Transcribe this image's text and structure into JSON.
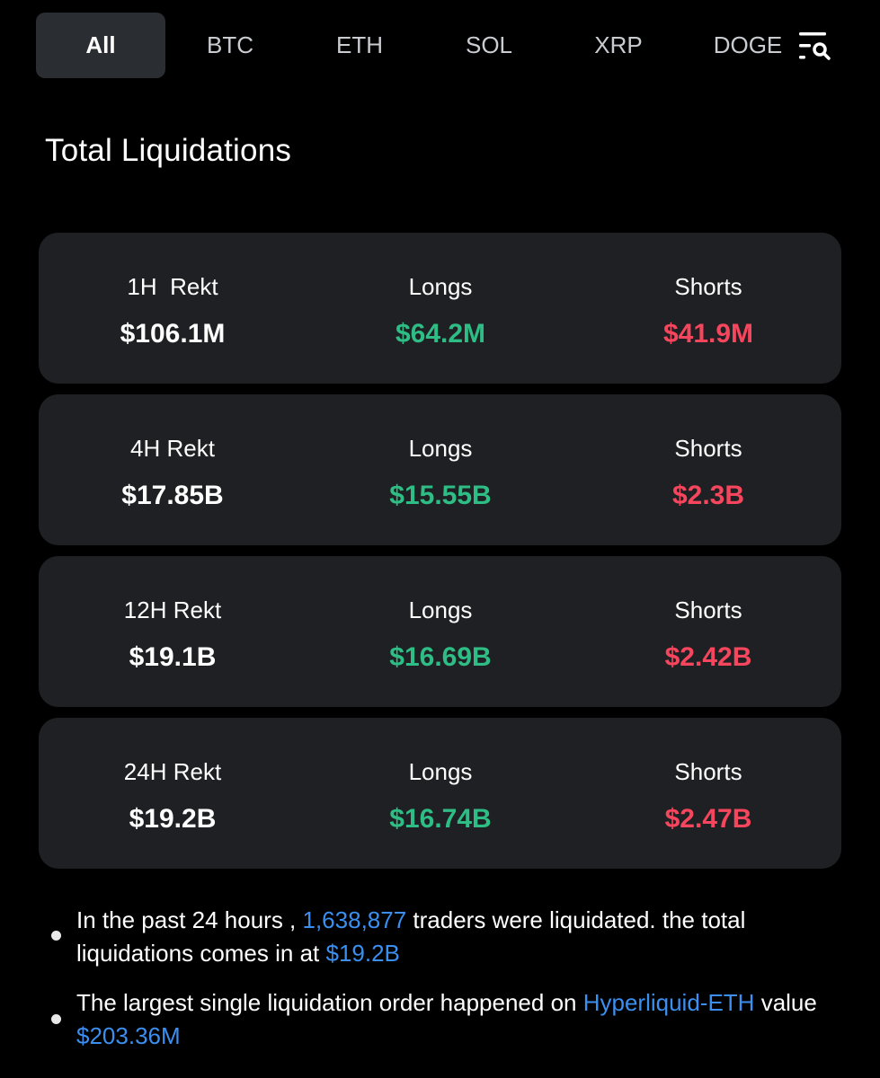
{
  "tabs": [
    {
      "label": "All",
      "active": true
    },
    {
      "label": "BTC",
      "active": false
    },
    {
      "label": "ETH",
      "active": false
    },
    {
      "label": "SOL",
      "active": false
    },
    {
      "label": "XRP",
      "active": false
    },
    {
      "label": "DOGE",
      "active": false
    }
  ],
  "filter_icon": "filter-search-icon",
  "section_title": "Total Liquidations",
  "cards": [
    {
      "period_label": "1H  Rekt",
      "total": "$106.1M",
      "longs_label": "Longs",
      "longs": "$64.2M",
      "shorts_label": "Shorts",
      "shorts": "$41.9M"
    },
    {
      "period_label": "4H Rekt",
      "total": "$17.85B",
      "longs_label": "Longs",
      "longs": "$15.55B",
      "shorts_label": "Shorts",
      "shorts": "$2.3B"
    },
    {
      "period_label": "12H Rekt",
      "total": "$19.1B",
      "longs_label": "Longs",
      "longs": "$16.69B",
      "shorts_label": "Shorts",
      "shorts": "$2.42B"
    },
    {
      "period_label": "24H Rekt",
      "total": "$19.2B",
      "longs_label": "Longs",
      "longs": "$16.74B",
      "shorts_label": "Shorts",
      "shorts": "$2.47B"
    }
  ],
  "notes": {
    "first": {
      "text1": "In the past 24 hours , ",
      "traders_count": "1,638,877",
      "text2": " traders were liquidated. the total liquidations comes in at ",
      "total": "$19.2B"
    },
    "second": {
      "text1": "The largest single liquidation order happened on ",
      "market": "Hyperliquid-ETH",
      "text2": " value ",
      "value": "$203.36M"
    }
  },
  "colors": {
    "background": "#000000",
    "card": "#1e2023",
    "active_tab": "#2a2d32",
    "long": "#2ebd85",
    "short": "#f6465d",
    "highlight": "#3b8ff0"
  }
}
